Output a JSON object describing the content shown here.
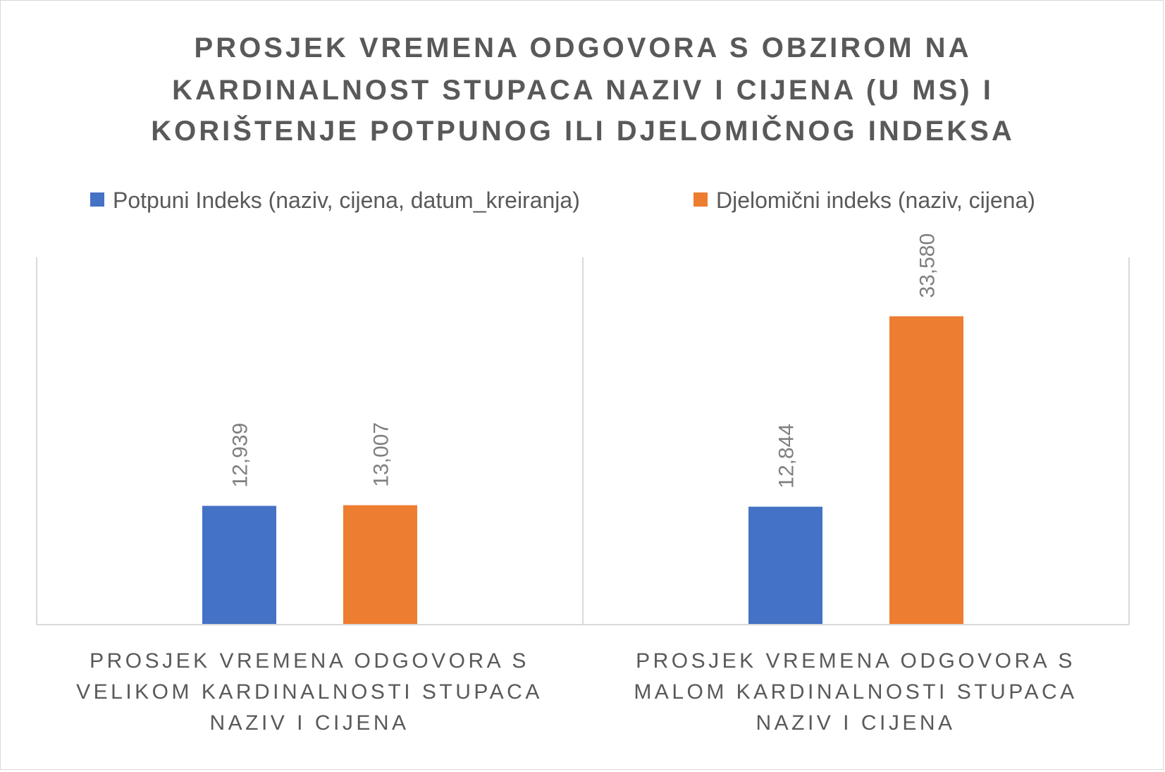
{
  "chart_data": {
    "type": "bar",
    "title_lines": [
      "PROSJEK VREMENA ODGOVORA S OBZIROM NA",
      "KARDINALNOST STUPACA NAZIV I CIJENA (U MS) I",
      "KORIŠTENJE POTPUNOG ILI DJELOMIČNOG INDEKSA"
    ],
    "categories": [
      [
        "PROSJEK VREMENA ODGOVORA S",
        "VELIKOM KARDINALNOSTI STUPACA",
        "NAZIV I CIJENA"
      ],
      [
        "PROSJEK VREMENA ODGOVORA S",
        "MALOM KARDINALNOSTI STUPACA",
        "NAZIV I CIJENA"
      ]
    ],
    "series": [
      {
        "name": "Potpuni Indeks (naziv, cijena, datum_kreiranja)",
        "values": [
          12.939,
          12.844
        ],
        "labels": [
          "12,939",
          "12,844"
        ],
        "color": "#4472c4"
      },
      {
        "name": "Djelomični indeks (naziv, cijena)",
        "values": [
          13.007,
          33.58
        ],
        "labels": [
          "13,007",
          "33,580"
        ],
        "color": "#ed7d31"
      }
    ],
    "ylim": [
      0,
      40
    ],
    "legend_position": "top",
    "grid": false
  }
}
